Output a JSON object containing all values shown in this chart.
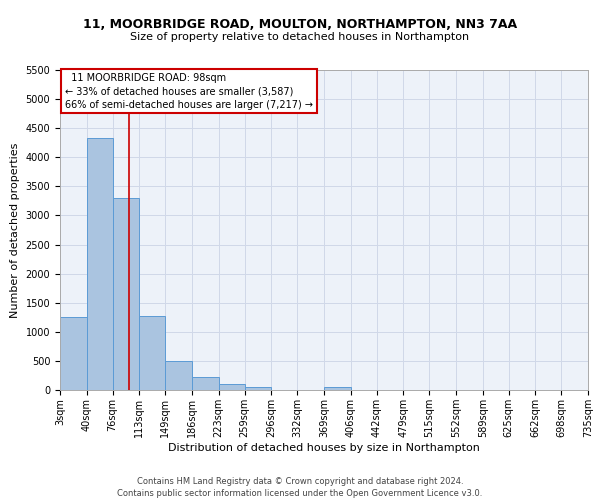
{
  "title1": "11, MOORBRIDGE ROAD, MOULTON, NORTHAMPTON, NN3 7AA",
  "title2": "Size of property relative to detached houses in Northampton",
  "xlabel": "Distribution of detached houses by size in Northampton",
  "ylabel": "Number of detached properties",
  "footnote1": "Contains HM Land Registry data © Crown copyright and database right 2024.",
  "footnote2": "Contains public sector information licensed under the Open Government Licence v3.0.",
  "annotation_line1": "  11 MOORBRIDGE ROAD: 98sqm",
  "annotation_line2": "← 33% of detached houses are smaller (3,587)",
  "annotation_line3": "66% of semi-detached houses are larger (7,217) →",
  "categories": [
    "3sqm",
    "40sqm",
    "76sqm",
    "113sqm",
    "149sqm",
    "186sqm",
    "223sqm",
    "259sqm",
    "296sqm",
    "332sqm",
    "369sqm",
    "406sqm",
    "442sqm",
    "479sqm",
    "515sqm",
    "552sqm",
    "589sqm",
    "625sqm",
    "662sqm",
    "698sqm",
    "735sqm"
  ],
  "bin_edges": [
    3,
    40,
    76,
    113,
    149,
    186,
    223,
    259,
    296,
    332,
    369,
    406,
    442,
    479,
    515,
    552,
    589,
    625,
    662,
    698,
    735
  ],
  "values": [
    1260,
    4330,
    3300,
    1270,
    490,
    215,
    95,
    55,
    0,
    0,
    60,
    0,
    0,
    0,
    0,
    0,
    0,
    0,
    0,
    0
  ],
  "bar_color": "#aac4e0",
  "bar_edge_color": "#5b9bd5",
  "grid_color": "#d0d8e8",
  "background_color": "#edf2f9",
  "vline_color": "#cc0000",
  "vline_x": 98,
  "ylim": [
    0,
    5500
  ],
  "yticks": [
    0,
    500,
    1000,
    1500,
    2000,
    2500,
    3000,
    3500,
    4000,
    4500,
    5000,
    5500
  ],
  "title1_fontsize": 9,
  "title2_fontsize": 8,
  "xlabel_fontsize": 8,
  "ylabel_fontsize": 8,
  "tick_fontsize": 7,
  "annot_fontsize": 7,
  "footnote_fontsize": 6
}
